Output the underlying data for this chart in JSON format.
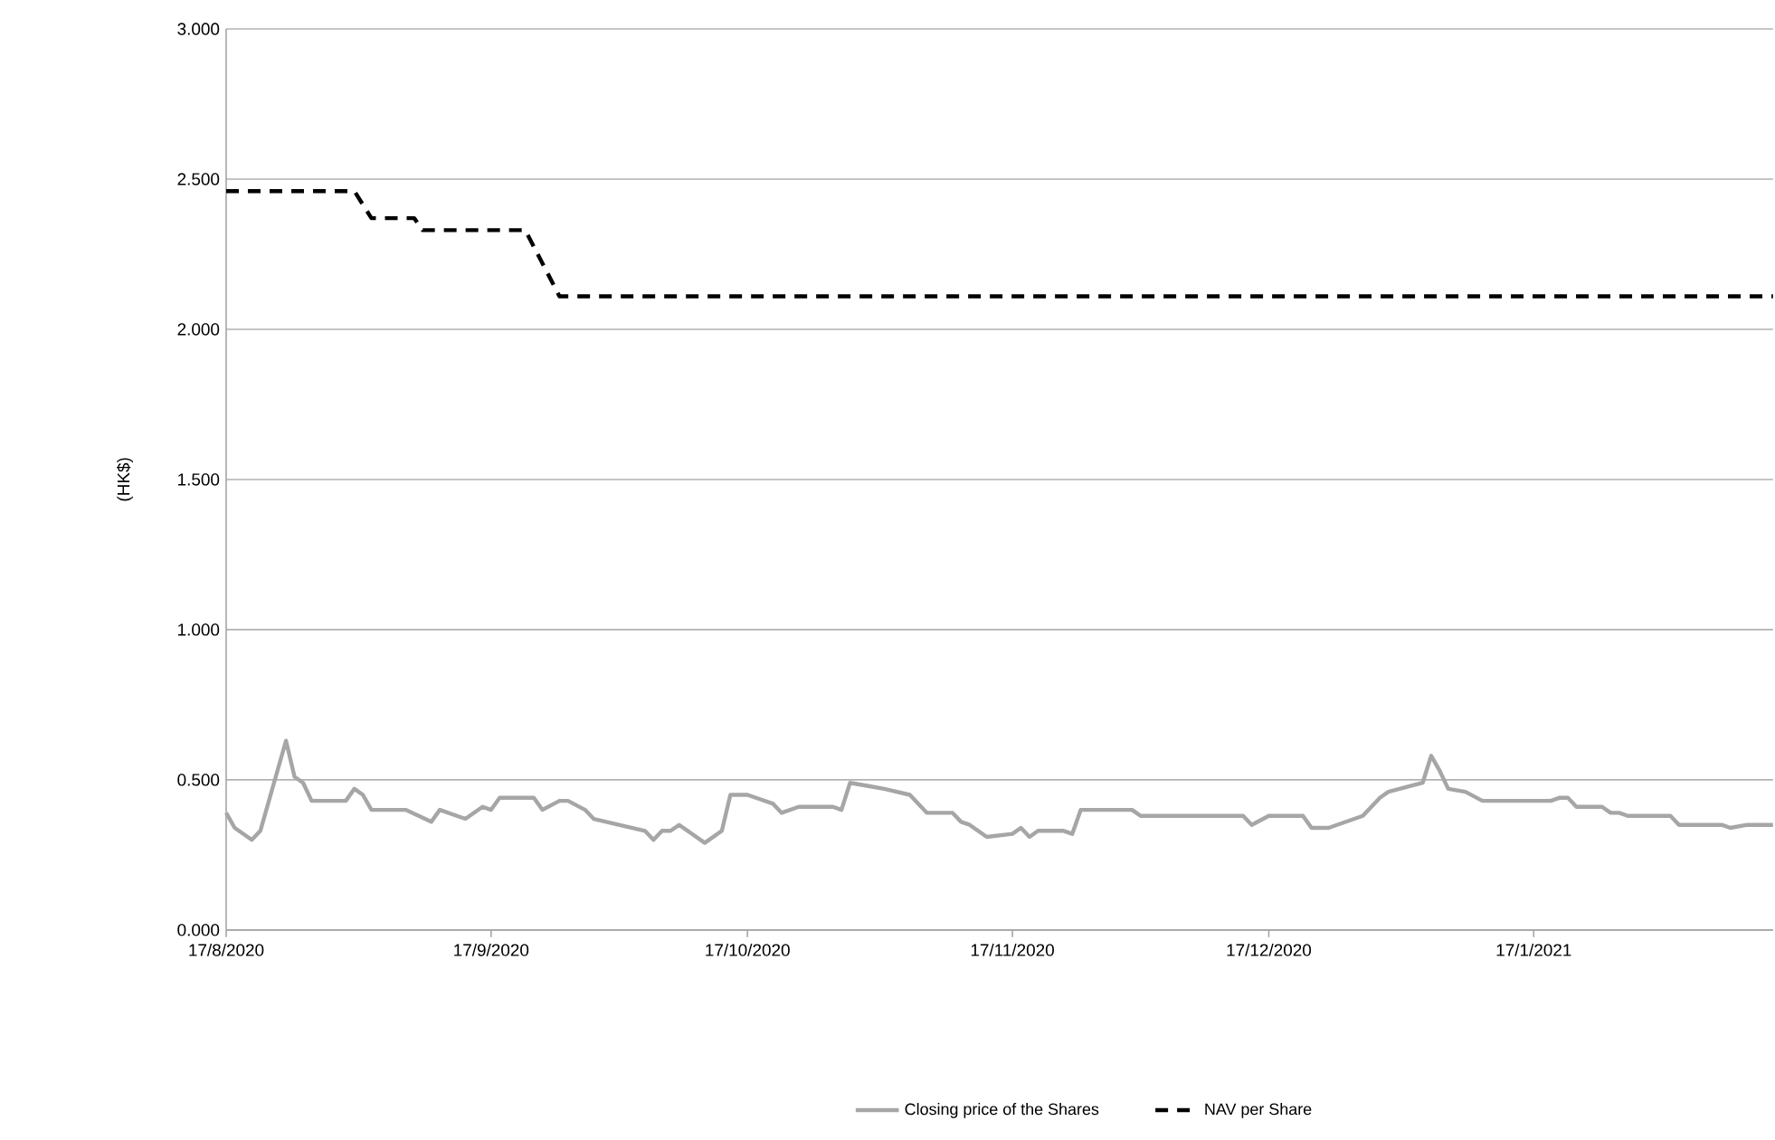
{
  "chart_data": {
    "type": "line",
    "ylabel": "(HK$)",
    "xlim": [
      "2020-08-17",
      "2021-02-14"
    ],
    "ylim": [
      0,
      3
    ],
    "xticks": [
      {
        "value": "2020-08-17",
        "label": "17/8/2020"
      },
      {
        "value": "2020-09-17",
        "label": "17/9/2020"
      },
      {
        "value": "2020-10-17",
        "label": "17/10/2020"
      },
      {
        "value": "2020-11-17",
        "label": "17/11/2020"
      },
      {
        "value": "2020-12-17",
        "label": "17/12/2020"
      },
      {
        "value": "2021-01-17",
        "label": "17/1/2021"
      }
    ],
    "yticks": [
      {
        "value": 0,
        "label": "0.000"
      },
      {
        "value": 0.5,
        "label": "0.500"
      },
      {
        "value": 1,
        "label": "1.000"
      },
      {
        "value": 1.5,
        "label": "1.500"
      },
      {
        "value": 2,
        "label": "2.000"
      },
      {
        "value": 2.5,
        "label": "2.500"
      },
      {
        "value": 3,
        "label": "3.000"
      }
    ],
    "grid": "y",
    "legend": "bottom",
    "marker": "none",
    "series": [
      {
        "name": "Closing price of the Shares",
        "color": "#a6a6a6",
        "line_style": "solid",
        "x": [
          "2020-08-17",
          "2020-08-18",
          "2020-08-20",
          "2020-08-21",
          "2020-08-24",
          "2020-08-25",
          "2020-08-26",
          "2020-08-27",
          "2020-08-31",
          "2020-09-01",
          "2020-09-02",
          "2020-09-03",
          "2020-09-07",
          "2020-09-10",
          "2020-09-11",
          "2020-09-14",
          "2020-09-16",
          "2020-09-17",
          "2020-09-18",
          "2020-09-22",
          "2020-09-23",
          "2020-09-25",
          "2020-09-26",
          "2020-09-28",
          "2020-09-29",
          "2020-10-05",
          "2020-10-06",
          "2020-10-07",
          "2020-10-08",
          "2020-10-09",
          "2020-10-12",
          "2020-10-14",
          "2020-10-15",
          "2020-10-17",
          "2020-10-20",
          "2020-10-21",
          "2020-10-23",
          "2020-10-27",
          "2020-10-28",
          "2020-10-29",
          "2020-10-31",
          "2020-11-02",
          "2020-11-05",
          "2020-11-07",
          "2020-11-10",
          "2020-11-11",
          "2020-11-12",
          "2020-11-14",
          "2020-11-17",
          "2020-11-18",
          "2020-11-19",
          "2020-11-20",
          "2020-11-23",
          "2020-11-24",
          "2020-11-25",
          "2020-12-01",
          "2020-12-02",
          "2020-12-14",
          "2020-12-15",
          "2020-12-17",
          "2020-12-21",
          "2020-12-22",
          "2020-12-24",
          "2020-12-28",
          "2020-12-30",
          "2020-12-31",
          "2021-01-04",
          "2021-01-05",
          "2021-01-06",
          "2021-01-07",
          "2021-01-09",
          "2021-01-11",
          "2021-01-19",
          "2021-01-20",
          "2021-01-21",
          "2021-01-22",
          "2021-01-25",
          "2021-01-26",
          "2021-01-27",
          "2021-01-28",
          "2021-02-02",
          "2021-02-03",
          "2021-02-05",
          "2021-02-08",
          "2021-02-09",
          "2021-02-11",
          "2021-02-14"
        ],
        "values": [
          0.39,
          0.34,
          0.3,
          0.33,
          0.63,
          0.51,
          0.49,
          0.43,
          0.43,
          0.47,
          0.45,
          0.4,
          0.4,
          0.36,
          0.4,
          0.37,
          0.41,
          0.4,
          0.44,
          0.44,
          0.4,
          0.43,
          0.43,
          0.4,
          0.37,
          0.33,
          0.3,
          0.33,
          0.33,
          0.35,
          0.29,
          0.33,
          0.45,
          0.45,
          0.42,
          0.39,
          0.41,
          0.41,
          0.4,
          0.49,
          0.48,
          0.47,
          0.45,
          0.39,
          0.39,
          0.36,
          0.35,
          0.31,
          0.32,
          0.34,
          0.31,
          0.33,
          0.33,
          0.32,
          0.4,
          0.4,
          0.38,
          0.38,
          0.35,
          0.38,
          0.38,
          0.34,
          0.34,
          0.38,
          0.44,
          0.46,
          0.49,
          0.58,
          0.53,
          0.47,
          0.46,
          0.43,
          0.43,
          0.44,
          0.44,
          0.41,
          0.41,
          0.39,
          0.39,
          0.38,
          0.38,
          0.35,
          0.35,
          0.35,
          0.34,
          0.35,
          0.35
        ]
      },
      {
        "name": "NAV per Share",
        "color": "#000000",
        "line_style": "dashed",
        "x": [
          "2020-08-17",
          "2020-09-01",
          "2020-09-03",
          "2020-09-08",
          "2020-09-09",
          "2020-09-21",
          "2020-09-25",
          "2021-02-14"
        ],
        "values": [
          2.46,
          2.46,
          2.37,
          2.37,
          2.33,
          2.33,
          2.11,
          2.11
        ]
      }
    ]
  }
}
